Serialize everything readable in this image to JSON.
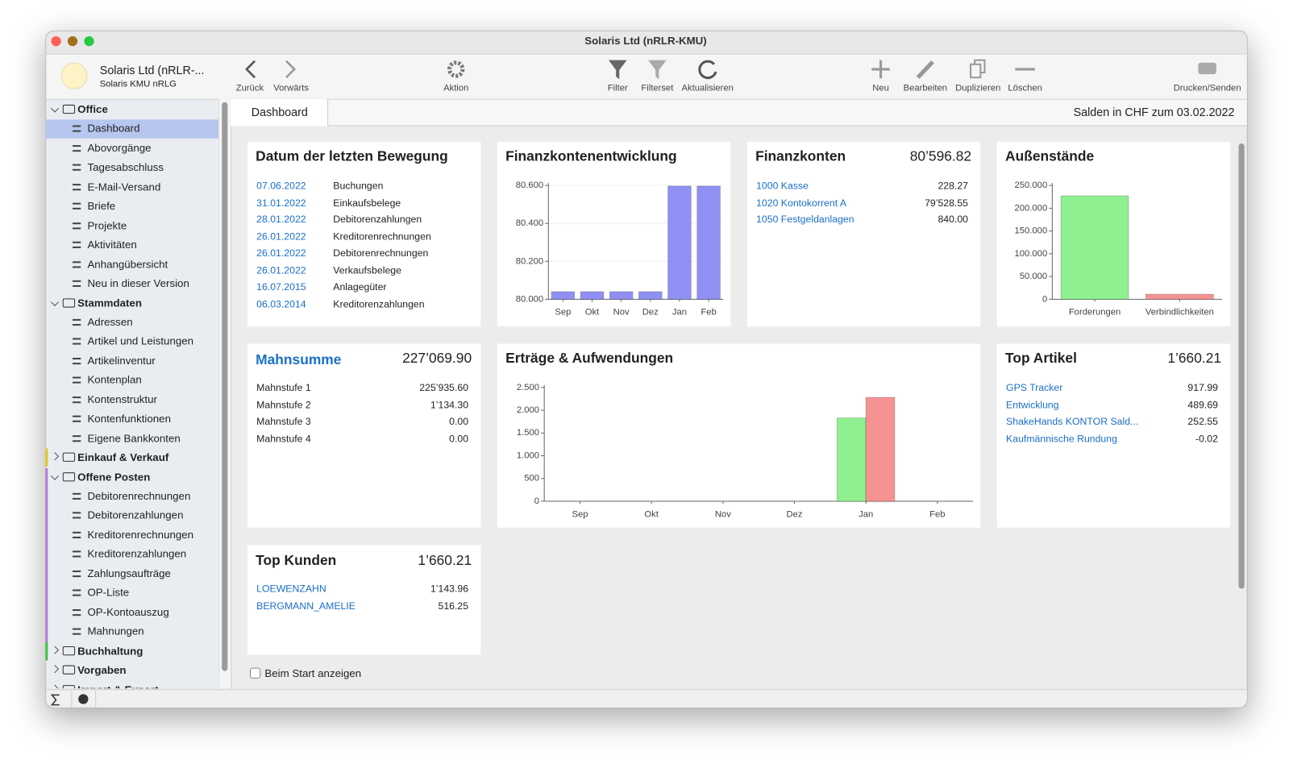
{
  "window": {
    "title": "Solaris Ltd  (nRLR-KMU)"
  },
  "profile": {
    "name": "Solaris Ltd  (nRLR-...",
    "subtitle": "Solaris KMU nRLG"
  },
  "toolbar": [
    "Zurück",
    "Vorwärts",
    "Aktion",
    "Filter",
    "Filterset",
    "Aktualisieren",
    "Neu",
    "Bearbeiten",
    "Duplizieren",
    "Löschen",
    "Drucken/Senden"
  ],
  "sidebar": {
    "groups": [
      {
        "title": "Office",
        "items": [
          "Dashboard",
          "Abovorgänge",
          "Tagesabschluss",
          "E-Mail-Versand",
          "Briefe",
          "Projekte",
          "Aktivitäten",
          "Anhangübersicht",
          "Neu in dieser Version"
        ]
      },
      {
        "title": "Stammdaten",
        "items": [
          "Adressen",
          "Artikel und Leistungen",
          "Artikelinventur",
          "Kontenplan",
          "Kontenstruktur",
          "Kontenfunktionen",
          "Eigene Bankkonten"
        ]
      },
      {
        "title": "Einkauf & Verkauf",
        "items": []
      },
      {
        "title": "Offene Posten",
        "items": [
          "Debitorenrechnungen",
          "Debitorenzahlungen",
          "Kreditorenrechnungen",
          "Kreditorenzahlungen",
          "Zahlungsaufträge",
          "OP-Liste",
          "OP-Kontoauszug",
          "Mahnungen"
        ]
      },
      {
        "title": "Buchhaltung",
        "items": []
      },
      {
        "title": "Vorgaben",
        "items": []
      },
      {
        "title": "Import & Export",
        "items": []
      }
    ]
  },
  "tab": "Dashboard",
  "status": "Salden in CHF zum 03.02.2022",
  "letzte_bewegung": {
    "title": "Datum der letzten Bewegung",
    "rows": [
      [
        "07.06.2022",
        "Buchungen"
      ],
      [
        "31.01.2022",
        "Einkaufsbelege"
      ],
      [
        "28.01.2022",
        "Debitorenzahlungen"
      ],
      [
        "26.01.2022",
        "Kreditorenrechnungen"
      ],
      [
        "26.01.2022",
        "Debitorenrechnungen"
      ],
      [
        "26.01.2022",
        "Verkaufsbelege"
      ],
      [
        "16.07.2015",
        "Anlagegüter"
      ],
      [
        "06.03.2014",
        "Kreditorenzahlungen"
      ]
    ]
  },
  "finanzkontenentwicklung": {
    "title": "Finanzkontenentwicklung",
    "chart": {
      "type": "bar",
      "categories": [
        "Sep",
        "Okt",
        "Nov",
        "Dez",
        "Jan",
        "Feb"
      ],
      "values": [
        80040,
        80040,
        80040,
        80040,
        80596.82,
        80596.82
      ],
      "color": "#9090f4",
      "ylim": [
        80000,
        80600
      ],
      "yticks": [
        {
          "value": 80000,
          "label": "80.000"
        },
        {
          "value": 80200,
          "label": "80.200"
        },
        {
          "value": 80400,
          "label": "80.400"
        },
        {
          "value": 80600,
          "label": "80.600"
        }
      ],
      "grid": true
    }
  },
  "finanzkonten": {
    "title": "Finanzkonten",
    "total": "80’596.82",
    "rows": [
      [
        "1000 Kasse",
        "228.27"
      ],
      [
        "1020 Kontokorrent A",
        "79’528.55"
      ],
      [
        "1050 Festgeldanlagen",
        "840.00"
      ]
    ]
  },
  "aussenstaende": {
    "title": "Außenstände",
    "chart": {
      "type": "bar",
      "categories": [
        "Forderungen",
        "Verbindlichkeiten"
      ],
      "values": [
        227069.9,
        11000
      ],
      "colors": [
        "#8ef08e",
        "#f59393"
      ],
      "ylim": [
        0,
        250000
      ],
      "yticks": [
        0,
        {
          "value": 50000,
          "label": "50.000"
        },
        {
          "value": 100000,
          "label": "100.000"
        },
        {
          "value": 150000,
          "label": "150.000"
        },
        {
          "value": 200000,
          "label": "200.000"
        },
        {
          "value": 250000,
          "label": "250.000"
        }
      ],
      "grid": false
    }
  },
  "mahnsumme": {
    "title": "Mahnsumme",
    "total": "227’069.90",
    "rows": [
      [
        "Mahnstufe 1",
        "225’935.60"
      ],
      [
        "Mahnstufe 2",
        "1’134.30"
      ],
      [
        "Mahnstufe 3",
        "0.00"
      ],
      [
        "Mahnstufe 4",
        "0.00"
      ]
    ]
  },
  "ertraege": {
    "title": "Erträge & Aufwendungen",
    "chart": {
      "type": "bar",
      "categories": [
        "Sep",
        "Okt",
        "Nov",
        "Dez",
        "Jan",
        "Feb"
      ],
      "series": [
        {
          "color": "#8ef08e",
          "values": [
            0,
            0,
            0,
            0,
            1830,
            0
          ]
        },
        {
          "color": "#f59393",
          "values": [
            0,
            0,
            0,
            0,
            2283,
            0
          ]
        }
      ],
      "ylim": [
        0,
        2500
      ],
      "yticks": [
        0,
        500,
        {
          "value": 1000,
          "label": "1.000"
        },
        {
          "value": 1500,
          "label": "1.500"
        },
        {
          "value": 2000,
          "label": "2.000"
        },
        {
          "value": 2500,
          "label": "2.500"
        }
      ],
      "grid": false
    }
  },
  "top_artikel": {
    "title": "Top Artikel",
    "total": "1’660.21",
    "rows": [
      [
        "GPS Tracker",
        "917.99"
      ],
      [
        "Entwicklung",
        "489.69"
      ],
      [
        "ShakeHands KONTOR Sald...",
        "252.55"
      ],
      [
        "Kaufmännische Rundung",
        "-0.02"
      ]
    ]
  },
  "top_kunden": {
    "title": "Top Kunden",
    "total": "1’660.21",
    "rows": [
      [
        "LOEWENZAHN",
        "1’143.96"
      ],
      [
        "BERGMANN_AMELIE",
        "516.25"
      ]
    ]
  },
  "checkbox": "Beim Start anzeigen"
}
